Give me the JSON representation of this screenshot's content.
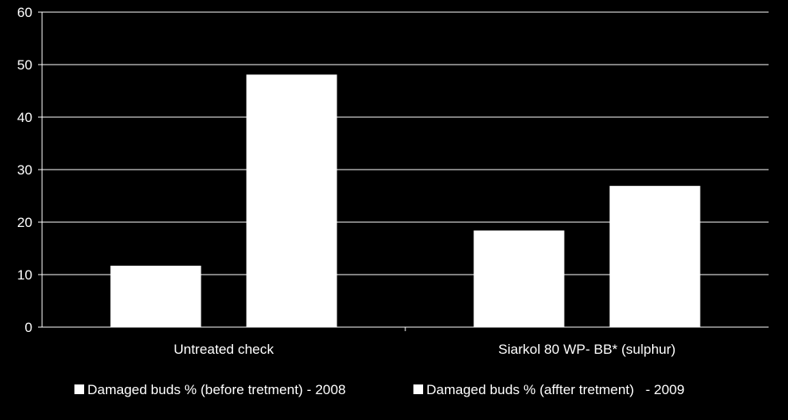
{
  "chart_data": {
    "type": "bar",
    "categories": [
      "Untreated check",
      "Siarkol 80 WP- BB* (sulphur)"
    ],
    "series": [
      {
        "name": "Damaged buds % (before tretment) - 2008",
        "values": [
          11.7,
          18.4
        ],
        "color": "#ffffff"
      },
      {
        "name": "Damaged buds % (affter tretment)   - 2009",
        "values": [
          48.1,
          26.9
        ],
        "color": "#ffffff"
      }
    ],
    "ylim": [
      0,
      60
    ],
    "yticks": [
      0,
      10,
      20,
      30,
      40,
      50,
      60
    ],
    "grid": true,
    "legend_position": "bottom",
    "colors": {
      "background": "#000000",
      "text": "#ffffff",
      "grid": "#ffffff",
      "bars": "#ffffff"
    }
  }
}
